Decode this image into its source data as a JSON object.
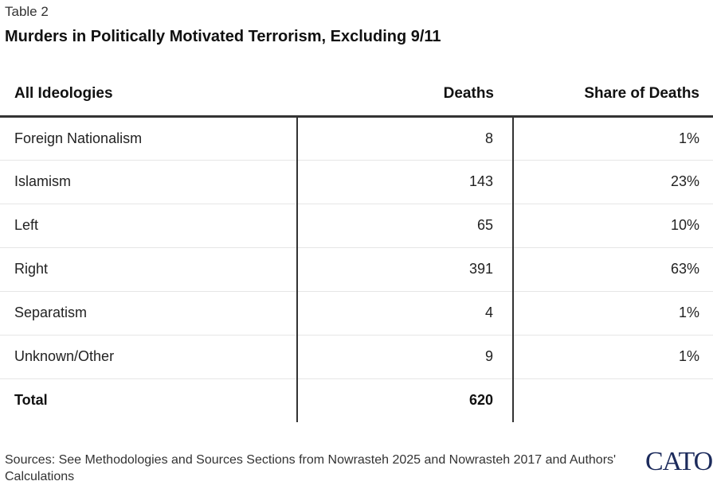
{
  "table": {
    "label": "Table 2",
    "title": "Murders in Politically Motivated Terrorism, Excluding 9/11",
    "columns": [
      "All Ideologies",
      "Deaths",
      "Share of Deaths"
    ],
    "rows": [
      [
        "Foreign Nationalism",
        "8",
        "1%"
      ],
      [
        "Islamism",
        "143",
        "23%"
      ],
      [
        "Left",
        "65",
        "10%"
      ],
      [
        "Right",
        "391",
        "63%"
      ],
      [
        "Separatism",
        "4",
        "1%"
      ],
      [
        "Unknown/Other",
        "9",
        "1%"
      ]
    ],
    "total": [
      "Total",
      "620"
    ]
  },
  "sources": "Sources: See Methodologies and Sources Sections from Nowrasteh 2025 and Nowrasteh 2017 and Authors' Calculations",
  "logo": "CATO"
}
